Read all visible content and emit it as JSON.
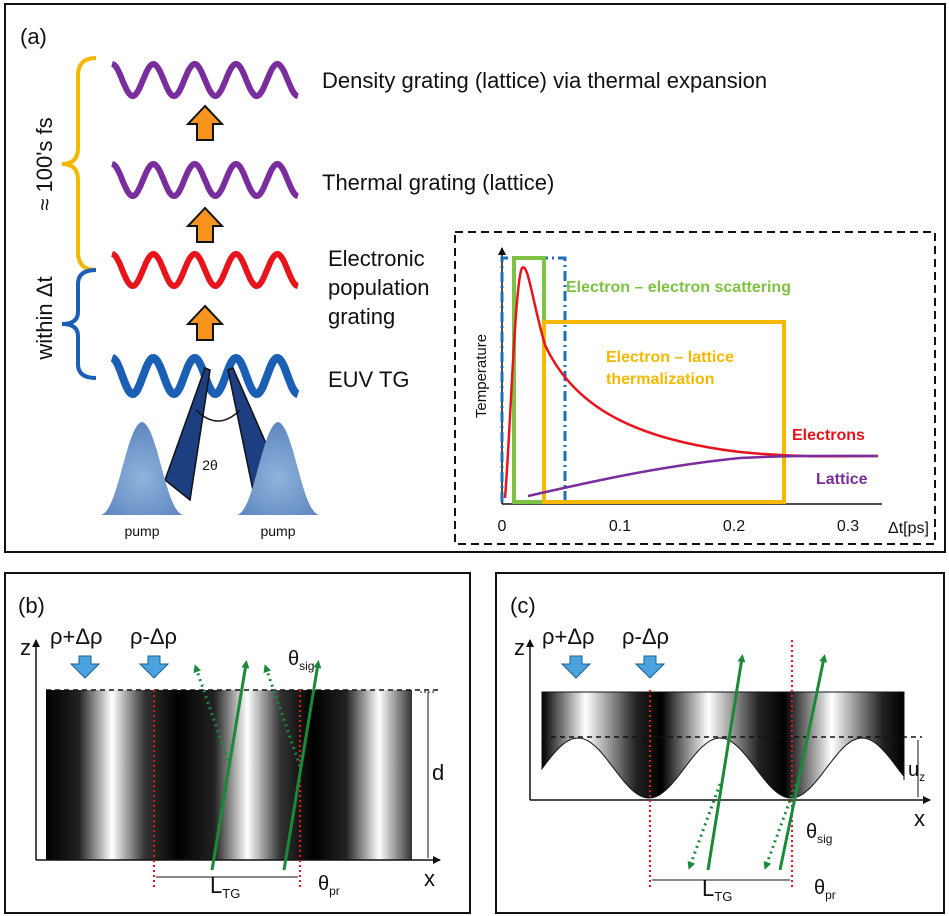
{
  "panel_a": {
    "label": "(a)",
    "bracket_top": "≈ 100's fs",
    "bracket_bottom": "within Δt",
    "levels": {
      "density": "Density grating (lattice) via thermal expansion",
      "thermal": "Thermal grating (lattice)",
      "electronic": [
        "Electronic",
        "population",
        "grating"
      ],
      "euv": "EUV TG"
    },
    "pump_left": "pump",
    "pump_right": "pump",
    "angle": "2θ",
    "inset": {
      "ylabel": "Temperature",
      "xlabel": "Δt[ps]",
      "xticks": [
        "0",
        "0.1",
        "0.2",
        "0.3"
      ],
      "box_green": "Electron – electron scattering",
      "box_yellow": [
        "Electron – lattice",
        "thermalization"
      ],
      "electrons": "Electrons",
      "lattice": "Lattice"
    },
    "colors": {
      "purple": "#7a2d9c",
      "red": "#e8141b",
      "blue": "#1a5fb4",
      "orange": "#f7941d",
      "yellow": "#f5b800",
      "green": "#7dc242",
      "dash_blue": "#1d6fb8"
    }
  },
  "panel_b": {
    "label": "(b)",
    "rho_plus": "ρ+Δρ",
    "rho_minus": "ρ-Δρ",
    "z": "z",
    "x": "x",
    "d": "d",
    "theta_sig": "θ",
    "theta_sig_sub": "sig",
    "L": "L",
    "L_sub": "TG",
    "theta_pr": "θ",
    "theta_pr_sub": "pr"
  },
  "panel_c": {
    "label": "(c)",
    "rho_plus": "ρ+Δρ",
    "rho_minus": "ρ-Δρ",
    "z": "z",
    "x": "x",
    "u": "u",
    "u_sub": "z",
    "theta_sig": "θ",
    "theta_sig_sub": "sig",
    "L": "L",
    "L_sub": "TG",
    "theta_pr": "θ",
    "theta_pr_sub": "pr"
  }
}
